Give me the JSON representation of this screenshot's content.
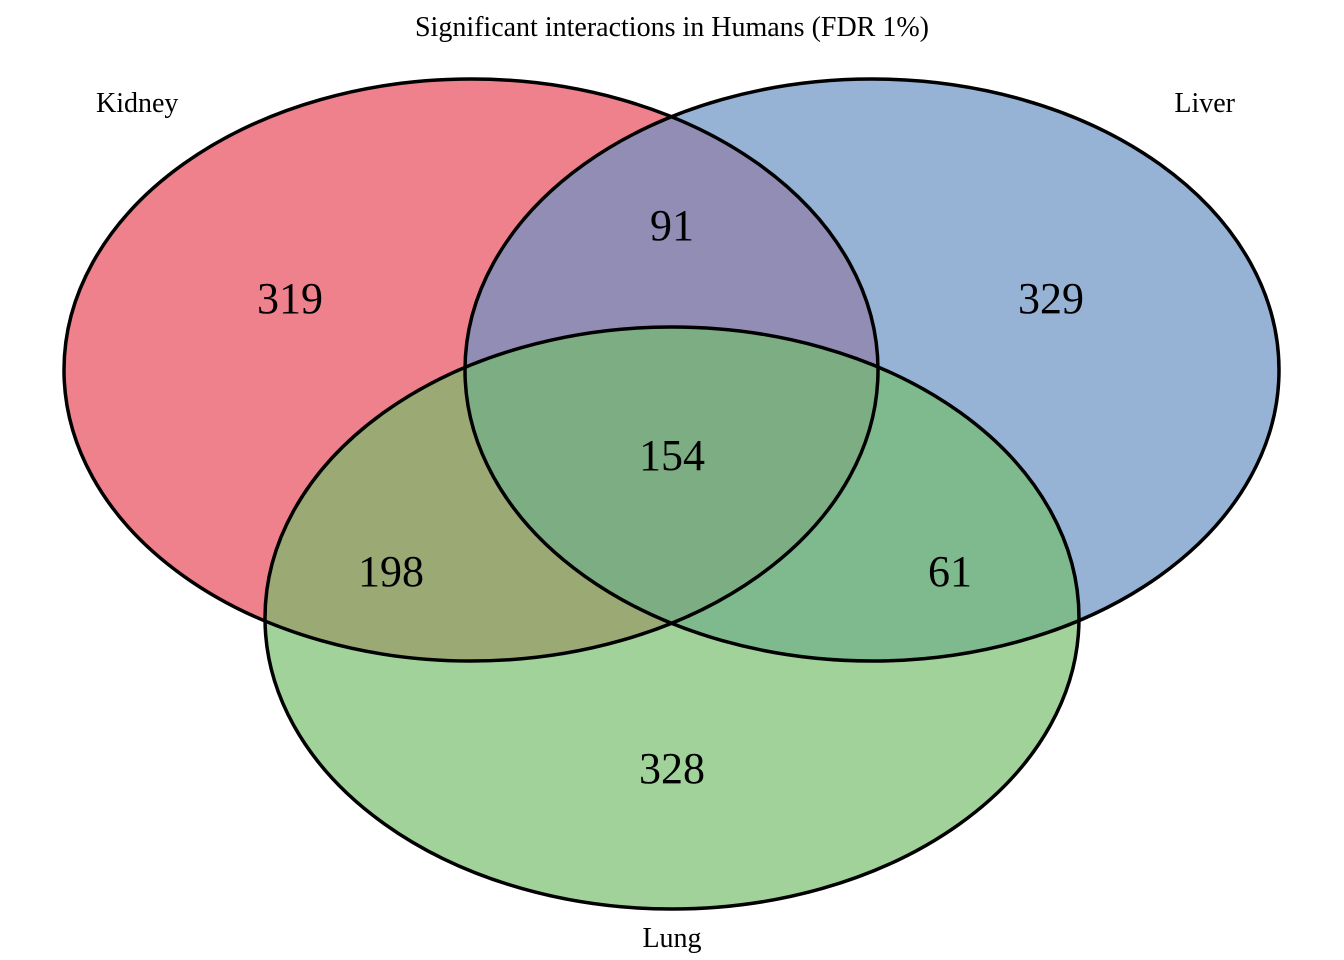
{
  "title": "Significant interactions in Humans (FDR 1%)",
  "sets": [
    {
      "id": "kidney",
      "label": "Kidney",
      "color": "#E8505F"
    },
    {
      "id": "liver",
      "label": "Liver",
      "color": "#6A93C4"
    },
    {
      "id": "lung",
      "label": "Lung",
      "color": "#73BC6A"
    }
  ],
  "regions": {
    "kidney_only": "319",
    "liver_only": "329",
    "lung_only": "328",
    "kidney_liver": "91",
    "kidney_lung": "198",
    "liver_lung": "61",
    "all_three": "154"
  }
}
